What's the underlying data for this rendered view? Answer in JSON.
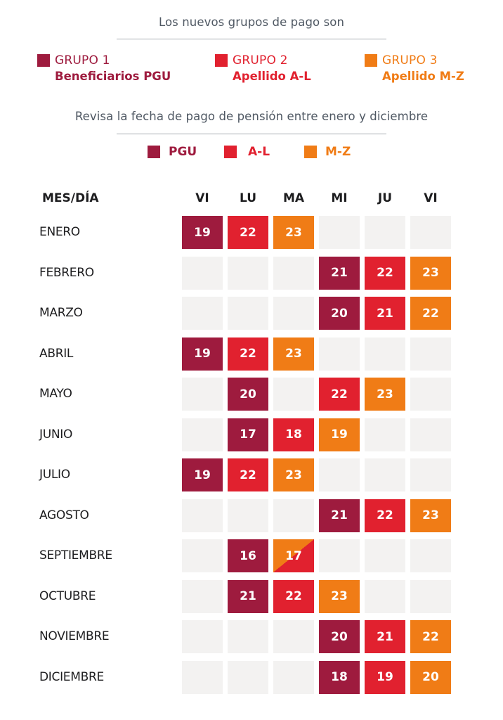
{
  "header": {
    "title": "Los nuevos grupos de pago son",
    "subtitle": "Revisa la fecha de pago de pensión entre enero y diciembre"
  },
  "groups": [
    {
      "title": "GRUPO 1",
      "subtitle": "Beneficiarios PGU",
      "color": "#9e1b3e"
    },
    {
      "title": "GRUPO 2",
      "subtitle": "Apellido A-L",
      "color": "#e1212f"
    },
    {
      "title": "GRUPO 3",
      "subtitle": "Apellido M-Z",
      "color": "#f07c16"
    }
  ],
  "legend": [
    {
      "label": "PGU",
      "color": "#9e1b3e"
    },
    {
      "label": "A-L",
      "color": "#e1212f"
    },
    {
      "label": "M-Z",
      "color": "#f07c16"
    }
  ],
  "table": {
    "corner_label": "MES/DÍA",
    "days": [
      "VI",
      "LU",
      "MA",
      "MI",
      "JU",
      "VI"
    ],
    "rows": [
      {
        "month": "ENERO",
        "cells": [
          {
            "v": "19",
            "g": "pgu"
          },
          {
            "v": "22",
            "g": "al"
          },
          {
            "v": "23",
            "g": "mz"
          },
          null,
          null,
          null
        ]
      },
      {
        "month": "FEBRERO",
        "cells": [
          null,
          null,
          null,
          {
            "v": "21",
            "g": "pgu"
          },
          {
            "v": "22",
            "g": "al"
          },
          {
            "v": "23",
            "g": "mz"
          }
        ]
      },
      {
        "month": "MARZO",
        "cells": [
          null,
          null,
          null,
          {
            "v": "20",
            "g": "pgu"
          },
          {
            "v": "21",
            "g": "al"
          },
          {
            "v": "22",
            "g": "mz"
          }
        ]
      },
      {
        "month": "ABRIL",
        "cells": [
          {
            "v": "19",
            "g": "pgu"
          },
          {
            "v": "22",
            "g": "al"
          },
          {
            "v": "23",
            "g": "mz"
          },
          null,
          null,
          null
        ]
      },
      {
        "month": "MAYO",
        "cells": [
          null,
          {
            "v": "20",
            "g": "pgu"
          },
          null,
          {
            "v": "22",
            "g": "al"
          },
          {
            "v": "23",
            "g": "mz"
          },
          null
        ]
      },
      {
        "month": "JUNIO",
        "cells": [
          null,
          {
            "v": "17",
            "g": "pgu"
          },
          {
            "v": "18",
            "g": "al"
          },
          {
            "v": "19",
            "g": "mz"
          },
          null,
          null
        ]
      },
      {
        "month": "JULIO",
        "cells": [
          {
            "v": "19",
            "g": "pgu"
          },
          {
            "v": "22",
            "g": "al"
          },
          {
            "v": "23",
            "g": "mz"
          },
          null,
          null,
          null
        ]
      },
      {
        "month": "AGOSTO",
        "cells": [
          null,
          null,
          null,
          {
            "v": "21",
            "g": "pgu"
          },
          {
            "v": "22",
            "g": "al"
          },
          {
            "v": "23",
            "g": "mz"
          }
        ]
      },
      {
        "month": "SEPTIEMBRE",
        "cells": [
          null,
          {
            "v": "16",
            "g": "pgu"
          },
          {
            "v": "17",
            "g": "al+mz"
          },
          null,
          null,
          null
        ]
      },
      {
        "month": "OCTUBRE",
        "cells": [
          null,
          {
            "v": "21",
            "g": "pgu"
          },
          {
            "v": "22",
            "g": "al"
          },
          {
            "v": "23",
            "g": "mz"
          },
          null,
          null
        ]
      },
      {
        "month": "NOVIEMBRE",
        "cells": [
          null,
          null,
          null,
          {
            "v": "20",
            "g": "pgu"
          },
          {
            "v": "21",
            "g": "al"
          },
          {
            "v": "22",
            "g": "mz"
          }
        ]
      },
      {
        "month": "DICIEMBRE",
        "cells": [
          null,
          null,
          null,
          {
            "v": "18",
            "g": "pgu"
          },
          {
            "v": "19",
            "g": "al"
          },
          {
            "v": "20",
            "g": "mz"
          }
        ]
      }
    ]
  },
  "colors": {
    "pgu": "#9e1b3e",
    "al": "#e1212f",
    "mz": "#f07c16",
    "empty": "#f3f2f1"
  }
}
